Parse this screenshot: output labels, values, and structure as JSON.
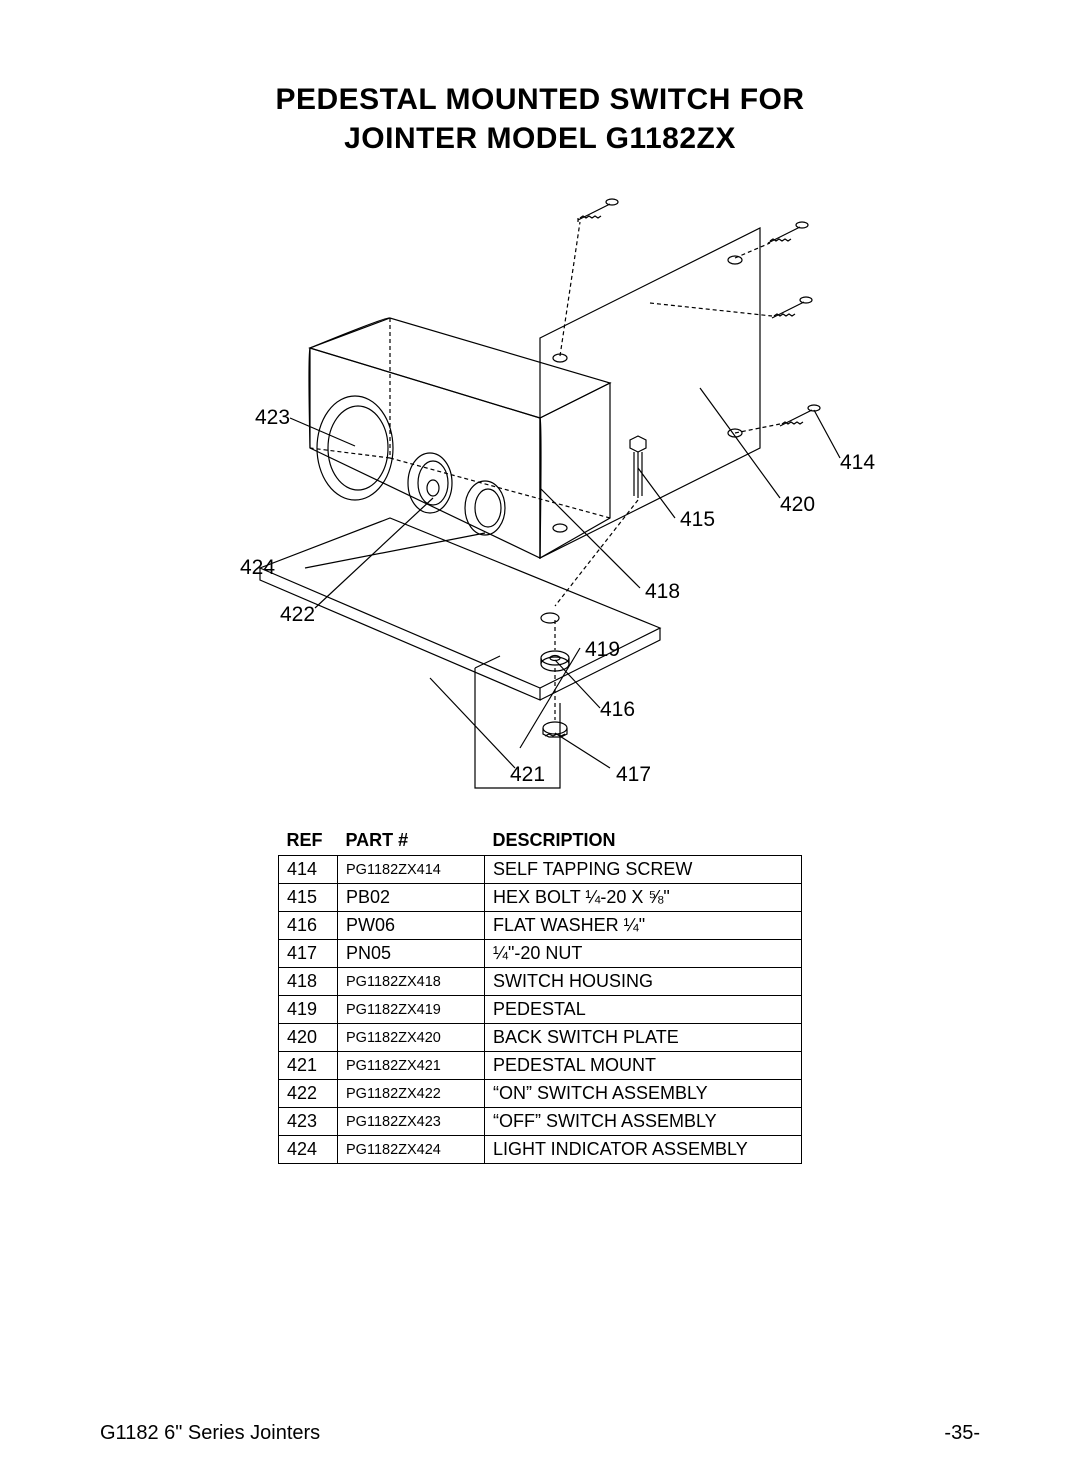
{
  "title_line1": "PEDESTAL MOUNTED SWITCH FOR",
  "title_line2": "JOINTER MODEL G1182ZX",
  "table": {
    "headers": {
      "ref": "REF",
      "part": "PART #",
      "desc": "DESCRIPTION"
    },
    "rows": [
      {
        "ref": "414",
        "part": "PG1182ZX414",
        "part_small": true,
        "desc": "SELF TAPPING SCREW"
      },
      {
        "ref": "415",
        "part": "PB02",
        "part_small": false,
        "desc": "HEX BOLT ¼-20 X ⅝\""
      },
      {
        "ref": "416",
        "part": "PW06",
        "part_small": false,
        "desc": "FLAT WASHER ¼\""
      },
      {
        "ref": "417",
        "part": "PN05",
        "part_small": false,
        "desc": "¼\"-20 NUT"
      },
      {
        "ref": "418",
        "part": "PG1182ZX418",
        "part_small": true,
        "desc": "SWITCH HOUSING"
      },
      {
        "ref": "419",
        "part": "PG1182ZX419",
        "part_small": true,
        "desc": "PEDESTAL"
      },
      {
        "ref": "420",
        "part": "PG1182ZX420",
        "part_small": true,
        "desc": "BACK SWITCH PLATE"
      },
      {
        "ref": "421",
        "part": "PG1182ZX421",
        "part_small": true,
        "desc": "PEDESTAL MOUNT"
      },
      {
        "ref": "422",
        "part": "PG1182ZX422",
        "part_small": true,
        "desc": "“ON” SWITCH ASSEMBLY"
      },
      {
        "ref": "423",
        "part": "PG1182ZX423",
        "part_small": true,
        "desc": "“OFF” SWITCH ASSEMBLY"
      },
      {
        "ref": "424",
        "part": "PG1182ZX424",
        "part_small": true,
        "desc": "LIGHT INDICATOR ASSEMBLY"
      }
    ]
  },
  "callouts": {
    "c414": "414",
    "c415": "415",
    "c416": "416",
    "c417": "417",
    "c418": "418",
    "c419": "419",
    "c420": "420",
    "c421": "421",
    "c422": "422",
    "c423": "423",
    "c424": "424"
  },
  "diagram": {
    "stroke": "#000000",
    "stroke_width": 1.2,
    "dash": "4,3"
  },
  "footer": {
    "left": "G1182 6\" Series Jointers",
    "right": "-35-"
  }
}
